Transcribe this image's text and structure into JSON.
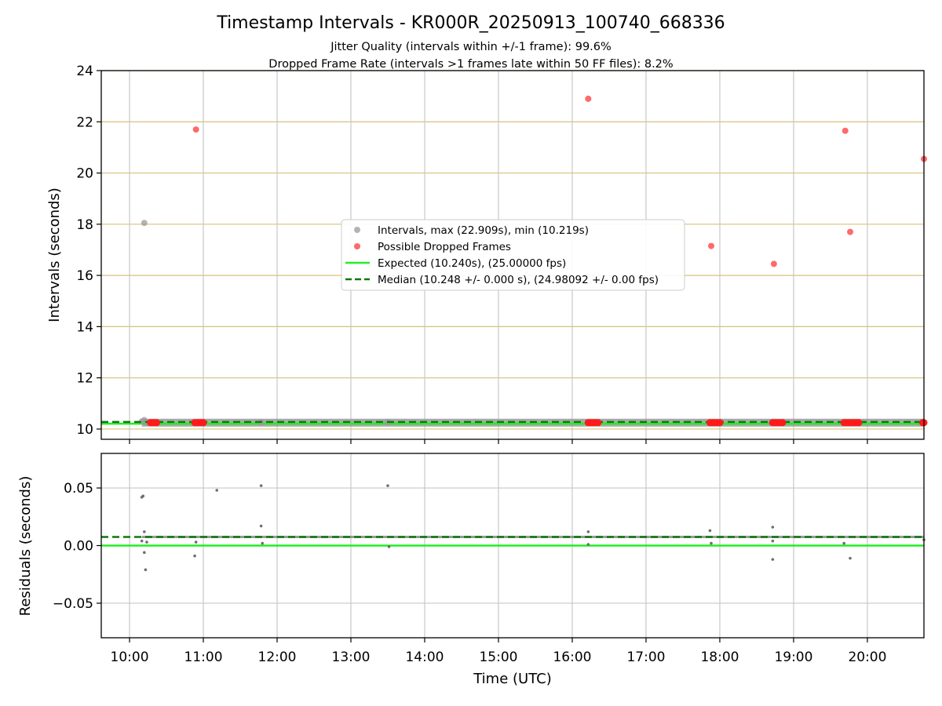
{
  "chart_data": [
    {
      "type": "scatter",
      "title": "Timestamp Intervals - KR000R_20250913_100740_668336",
      "subtitle_lines": [
        "Jitter Quality (intervals within +/-1 frame): 99.6%",
        "Dropped Frame Rate (intervals >1 frames late within 50 FF files): 8.2%"
      ],
      "xlabel": "",
      "ylabel": "Intervals (seconds)",
      "xlim": [
        "09:37",
        "20:46"
      ],
      "ylim": [
        9.6,
        24
      ],
      "yticks": [
        "10",
        "12",
        "14",
        "16",
        "18",
        "20",
        "22",
        "24"
      ],
      "xgrid_times": [
        "10:00",
        "11:00",
        "12:00",
        "13:00",
        "14:00",
        "15:00",
        "16:00",
        "17:00",
        "18:00",
        "19:00",
        "20:00"
      ],
      "grid": true,
      "hgrid_color": "#d8c07a",
      "vgrid_color": "#c8c8c8",
      "legend_position": "center",
      "series": [
        {
          "name": "Intervals, max (22.909s), min (10.219s)",
          "color": "#9a9a9a",
          "marker": "circle",
          "points": [
            [
              "10:12",
              18.05
            ],
            [
              "10:10",
              10.3
            ],
            [
              "10:12",
              10.35
            ],
            [
              "10:14",
              10.25
            ],
            [
              "11:47",
              10.26
            ],
            [
              "13:30",
              10.27
            ],
            [
              "16:14",
              10.25
            ],
            [
              "17:52",
              10.25
            ],
            [
              "18:42",
              10.25
            ],
            [
              "19:41",
              10.25
            ]
          ],
          "band": {
            "from": "10:10",
            "to": "20:46",
            "y": 10.25
          }
        },
        {
          "name": "Possible Dropped Frames",
          "color": "#ff5a5a",
          "marker": "circle",
          "points": [
            [
              "10:54",
              21.7
            ],
            [
              "16:13",
              22.9
            ],
            [
              "17:53",
              17.15
            ],
            [
              "18:44",
              16.45
            ],
            [
              "19:42",
              21.65
            ],
            [
              "19:46",
              17.7
            ],
            [
              "20:46",
              20.55
            ]
          ],
          "clusters": [
            {
              "from": "10:17",
              "to": "10:22",
              "y": 10.25
            },
            {
              "from": "10:53",
              "to": "11:00",
              "y": 10.25
            },
            {
              "from": "16:13",
              "to": "16:21",
              "y": 10.25
            },
            {
              "from": "17:52",
              "to": "18:00",
              "y": 10.25
            },
            {
              "from": "18:43",
              "to": "18:51",
              "y": 10.25
            },
            {
              "from": "19:41",
              "to": "19:53",
              "y": 10.25
            },
            {
              "from": "20:45",
              "to": "20:46",
              "y": 10.25
            }
          ]
        },
        {
          "name": "Expected (10.240s), (25.00000 fps)",
          "color": "#22ee22",
          "style": "solid",
          "y": 10.24
        },
        {
          "name": "Median (10.248 +/- 0.000 s), (24.98092 +/- 0.00 fps)",
          "color": "#117711",
          "style": "dashed",
          "y": 10.248
        }
      ]
    },
    {
      "type": "scatter",
      "xlabel": "Time (UTC)",
      "ylabel": "Residuals (seconds)",
      "xlim": [
        "09:37",
        "20:46"
      ],
      "ylim": [
        -0.08,
        0.08
      ],
      "yticks": [
        "−0.05",
        "0.00",
        "0.05"
      ],
      "xticks": [
        "10:00",
        "11:00",
        "12:00",
        "13:00",
        "14:00",
        "15:00",
        "16:00",
        "17:00",
        "18:00",
        "19:00",
        "20:00"
      ],
      "grid": true,
      "series": [
        {
          "name": "Residuals",
          "color": "#6e6e6e",
          "points": [
            [
              "10:10",
              0.042
            ],
            [
              "10:11",
              0.043
            ],
            [
              "10:12",
              -0.006
            ],
            [
              "10:13",
              -0.021
            ],
            [
              "10:10",
              0.004
            ],
            [
              "10:12",
              0.012
            ],
            [
              "10:14",
              0.003
            ],
            [
              "10:53",
              -0.009
            ],
            [
              "10:54",
              0.003
            ],
            [
              "11:11",
              0.048
            ],
            [
              "11:47",
              0.052
            ],
            [
              "11:47",
              0.017
            ],
            [
              "11:48",
              0.002
            ],
            [
              "13:30",
              0.052
            ],
            [
              "13:31",
              -0.001
            ],
            [
              "16:13",
              0.012
            ],
            [
              "16:13",
              0.001
            ],
            [
              "17:52",
              0.013
            ],
            [
              "17:53",
              0.002
            ],
            [
              "18:43",
              0.016
            ],
            [
              "18:43",
              0.004
            ],
            [
              "18:43",
              -0.012
            ],
            [
              "19:41",
              0.002
            ],
            [
              "19:46",
              -0.011
            ],
            [
              "20:46",
              0.005
            ]
          ],
          "band": {
            "from": "10:10",
            "to": "20:46",
            "y": 0.0075
          }
        },
        {
          "name": "Expected",
          "color": "#22ee22",
          "style": "solid",
          "y": 0.0
        },
        {
          "name": "Median",
          "color": "#117711",
          "style": "dashed",
          "y": 0.0075
        }
      ]
    }
  ]
}
